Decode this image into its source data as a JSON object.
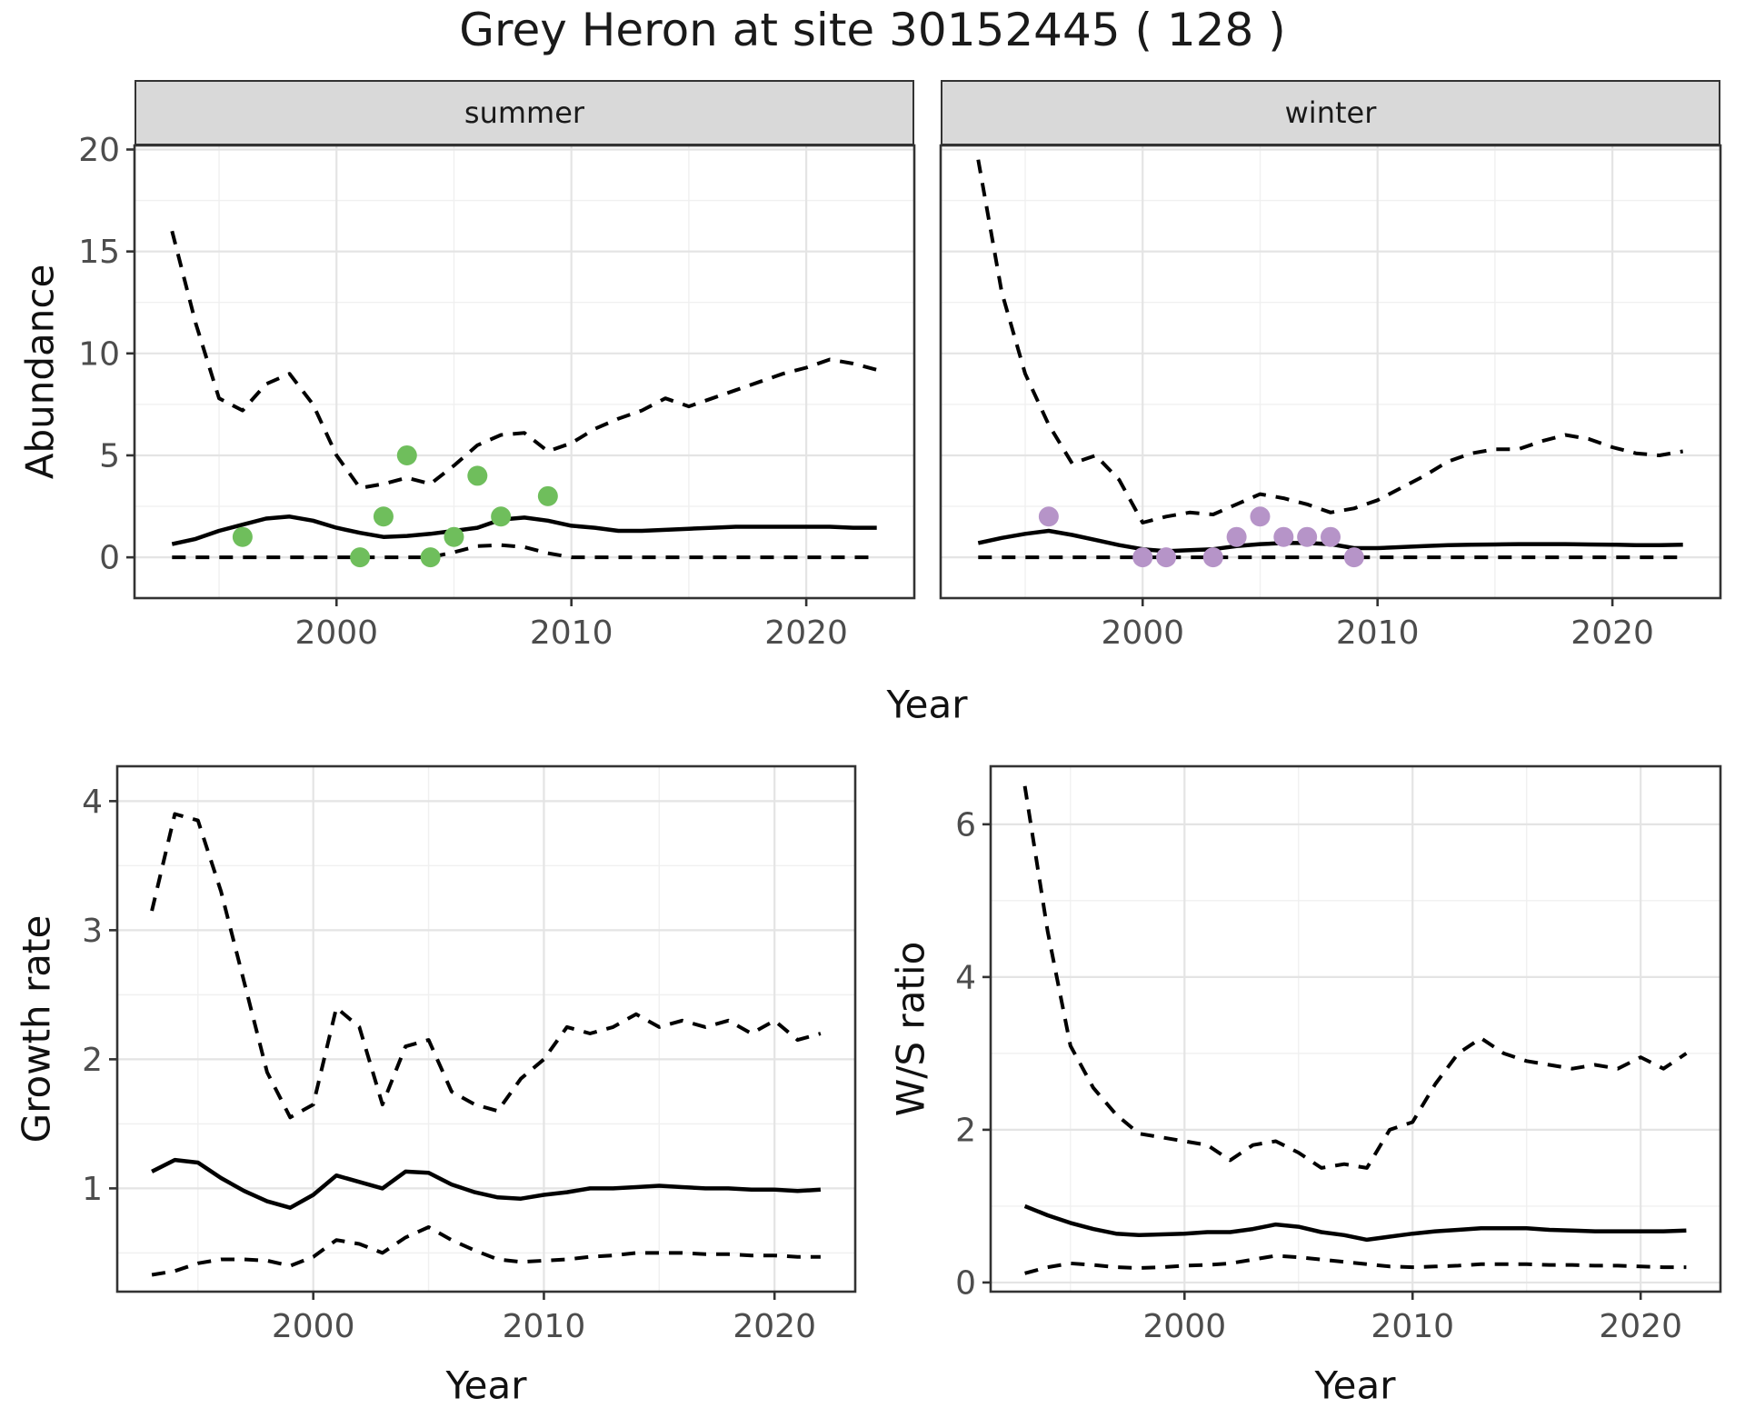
{
  "title": "Grey Heron at site 30152445 ( 128 )",
  "colors": {
    "summer_point": "#6fbe5c",
    "winter_point": "#b694c8",
    "line": "#000000",
    "strip_fill": "#d9d9d9",
    "strip_border": "#333333",
    "panel_border": "#333333",
    "grid_major": "#e4e4e4",
    "grid_minor": "#f0f0f0",
    "axis_text": "#4d4d4d",
    "title_text": "#1a1a1a"
  },
  "chart_data": [
    {
      "type": "line",
      "facet": "summer",
      "xlabel": "Year",
      "ylabel": "Abundance",
      "legend_position": "none",
      "grid": true,
      "xlim": [
        1991.4,
        2024.6
      ],
      "ylim": [
        -2.0,
        20.2
      ],
      "xticks": [
        2000,
        2010,
        2020
      ],
      "xticks_minor": [
        1995,
        2005,
        2015
      ],
      "yticks": [
        0,
        5,
        10,
        15,
        20
      ],
      "yticks_minor": [
        2.5,
        7.5,
        12.5,
        17.5
      ],
      "years": [
        1993,
        1994,
        1995,
        1996,
        1997,
        1998,
        1999,
        2000,
        2001,
        2002,
        2003,
        2004,
        2005,
        2006,
        2007,
        2008,
        2009,
        2010,
        2011,
        2012,
        2013,
        2014,
        2015,
        2016,
        2017,
        2018,
        2019,
        2020,
        2021,
        2022,
        2023
      ],
      "series": [
        {
          "name": "median",
          "style": "solid",
          "values": [
            0.65,
            0.9,
            1.3,
            1.6,
            1.9,
            2.0,
            1.8,
            1.45,
            1.2,
            1.0,
            1.05,
            1.15,
            1.3,
            1.45,
            1.85,
            1.95,
            1.8,
            1.55,
            1.45,
            1.3,
            1.3,
            1.35,
            1.4,
            1.45,
            1.5,
            1.5,
            1.5,
            1.5,
            1.5,
            1.45,
            1.45
          ]
        },
        {
          "name": "upper-ci",
          "style": "dashed",
          "values": [
            16,
            11.5,
            7.8,
            7.2,
            8.5,
            9.0,
            7.5,
            5.0,
            3.4,
            3.6,
            3.9,
            3.6,
            4.5,
            5.5,
            6.0,
            6.1,
            5.2,
            5.6,
            6.3,
            6.8,
            7.2,
            7.8,
            7.4,
            7.8,
            8.2,
            8.6,
            9.0,
            9.3,
            9.7,
            9.5,
            9.2
          ]
        },
        {
          "name": "lower-ci",
          "style": "dashed",
          "values": [
            0,
            0,
            0,
            0,
            0,
            0,
            0,
            0,
            0,
            0,
            0,
            0,
            0.25,
            0.55,
            0.6,
            0.5,
            0.2,
            0,
            0,
            0,
            0,
            0,
            0,
            0,
            0,
            0,
            0,
            0,
            0,
            0,
            0
          ]
        }
      ],
      "points": [
        [
          1996,
          1
        ],
        [
          2001,
          0
        ],
        [
          2002,
          2
        ],
        [
          2003,
          5
        ],
        [
          2004,
          0
        ],
        [
          2005,
          1
        ],
        [
          2006,
          4
        ],
        [
          2007,
          2
        ],
        [
          2009,
          3
        ]
      ],
      "point_color": "#6fbe5c"
    },
    {
      "type": "line",
      "facet": "winter",
      "xlabel": "Year",
      "ylabel": "Abundance",
      "legend_position": "none",
      "grid": true,
      "xlim": [
        1991.4,
        2024.6
      ],
      "ylim": [
        -2.0,
        20.2
      ],
      "xticks": [
        2000,
        2010,
        2020
      ],
      "xticks_minor": [
        1995,
        2005,
        2015
      ],
      "yticks": [
        0,
        5,
        10,
        15,
        20
      ],
      "yticks_minor": [
        2.5,
        7.5,
        12.5,
        17.5
      ],
      "years": [
        1993,
        1994,
        1995,
        1996,
        1997,
        1998,
        1999,
        2000,
        2001,
        2002,
        2003,
        2004,
        2005,
        2006,
        2007,
        2008,
        2009,
        2010,
        2011,
        2012,
        2013,
        2014,
        2015,
        2016,
        2017,
        2018,
        2019,
        2020,
        2021,
        2022,
        2023
      ],
      "series": [
        {
          "name": "median",
          "style": "solid",
          "values": [
            0.7,
            0.95,
            1.15,
            1.3,
            1.1,
            0.85,
            0.6,
            0.4,
            0.3,
            0.35,
            0.4,
            0.55,
            0.65,
            0.7,
            0.7,
            0.65,
            0.45,
            0.45,
            0.5,
            0.55,
            0.6,
            0.62,
            0.63,
            0.65,
            0.65,
            0.65,
            0.63,
            0.62,
            0.6,
            0.6,
            0.62
          ]
        },
        {
          "name": "upper-ci",
          "style": "dashed",
          "values": [
            19.5,
            13.0,
            9.0,
            6.5,
            4.6,
            5.0,
            3.8,
            1.7,
            2.0,
            2.2,
            2.1,
            2.6,
            3.1,
            2.9,
            2.6,
            2.2,
            2.4,
            2.8,
            3.4,
            4.0,
            4.7,
            5.1,
            5.3,
            5.3,
            5.7,
            6.0,
            5.8,
            5.4,
            5.1,
            5.0,
            5.2
          ]
        },
        {
          "name": "lower-ci",
          "style": "dashed",
          "values": [
            0,
            0,
            0,
            0,
            0,
            0,
            0,
            0,
            0,
            0,
            0,
            0,
            0,
            0,
            0,
            0,
            0,
            0,
            0,
            0,
            0,
            0,
            0,
            0,
            0,
            0,
            0,
            0,
            0,
            0,
            0
          ]
        }
      ],
      "points": [
        [
          1996,
          2
        ],
        [
          2000,
          0
        ],
        [
          2001,
          0
        ],
        [
          2003,
          0
        ],
        [
          2004,
          1
        ],
        [
          2005,
          2
        ],
        [
          2006,
          1
        ],
        [
          2007,
          1
        ],
        [
          2008,
          1
        ],
        [
          2009,
          0
        ]
      ],
      "point_color": "#b694c8"
    },
    {
      "type": "line",
      "facet": "",
      "xlabel": "Year",
      "ylabel": "Growth rate",
      "legend_position": "none",
      "grid": true,
      "xlim": [
        1991.5,
        2023.5
      ],
      "ylim": [
        0.2,
        4.27
      ],
      "xticks": [
        2000,
        2010,
        2020
      ],
      "xticks_minor": [
        1995,
        2005,
        2015
      ],
      "yticks": [
        1,
        2,
        3,
        4
      ],
      "yticks_minor": [
        0.5,
        1.5,
        2.5,
        3.5
      ],
      "years": [
        1993,
        1994,
        1995,
        1996,
        1997,
        1998,
        1999,
        2000,
        2001,
        2002,
        2003,
        2004,
        2005,
        2006,
        2007,
        2008,
        2009,
        2010,
        2011,
        2012,
        2013,
        2014,
        2015,
        2016,
        2017,
        2018,
        2019,
        2020,
        2021,
        2022
      ],
      "series": [
        {
          "name": "median",
          "style": "solid",
          "values": [
            1.13,
            1.22,
            1.2,
            1.08,
            0.98,
            0.9,
            0.85,
            0.95,
            1.1,
            1.05,
            1.0,
            1.13,
            1.12,
            1.03,
            0.97,
            0.93,
            0.92,
            0.95,
            0.97,
            1.0,
            1.0,
            1.01,
            1.02,
            1.01,
            1.0,
            1.0,
            0.99,
            0.99,
            0.98,
            0.99
          ]
        },
        {
          "name": "upper-ci",
          "style": "dashed",
          "values": [
            3.15,
            3.9,
            3.85,
            3.3,
            2.6,
            1.9,
            1.55,
            1.65,
            2.4,
            2.25,
            1.65,
            2.1,
            2.15,
            1.75,
            1.65,
            1.6,
            1.85,
            2.0,
            2.25,
            2.2,
            2.25,
            2.35,
            2.25,
            2.3,
            2.25,
            2.3,
            2.2,
            2.3,
            2.15,
            2.2
          ]
        },
        {
          "name": "lower-ci",
          "style": "dashed",
          "values": [
            0.33,
            0.36,
            0.42,
            0.45,
            0.45,
            0.44,
            0.4,
            0.47,
            0.6,
            0.57,
            0.5,
            0.62,
            0.7,
            0.6,
            0.52,
            0.45,
            0.43,
            0.44,
            0.45,
            0.47,
            0.48,
            0.5,
            0.5,
            0.5,
            0.49,
            0.49,
            0.48,
            0.48,
            0.47,
            0.47
          ]
        }
      ],
      "points": [],
      "point_color": "#000000"
    },
    {
      "type": "line",
      "facet": "",
      "xlabel": "Year",
      "ylabel": "W/S ratio",
      "legend_position": "none",
      "grid": true,
      "xlim": [
        1991.5,
        2023.5
      ],
      "ylim": [
        -0.12,
        6.76
      ],
      "xticks": [
        2000,
        2010,
        2020
      ],
      "xticks_minor": [
        1995,
        2005,
        2015
      ],
      "yticks": [
        0,
        2,
        4,
        6
      ],
      "yticks_minor": [
        1,
        3,
        5
      ],
      "years": [
        1993,
        1994,
        1995,
        1996,
        1997,
        1998,
        1999,
        2000,
        2001,
        2002,
        2003,
        2004,
        2005,
        2006,
        2007,
        2008,
        2009,
        2010,
        2011,
        2012,
        2013,
        2014,
        2015,
        2016,
        2017,
        2018,
        2019,
        2020,
        2021,
        2022
      ],
      "series": [
        {
          "name": "median",
          "style": "solid",
          "values": [
            1.0,
            0.88,
            0.78,
            0.7,
            0.64,
            0.62,
            0.63,
            0.64,
            0.66,
            0.66,
            0.7,
            0.76,
            0.73,
            0.66,
            0.62,
            0.56,
            0.6,
            0.64,
            0.67,
            0.69,
            0.71,
            0.71,
            0.71,
            0.69,
            0.68,
            0.67,
            0.67,
            0.67,
            0.67,
            0.68
          ]
        },
        {
          "name": "upper-ci",
          "style": "dashed",
          "values": [
            6.5,
            4.6,
            3.1,
            2.55,
            2.2,
            1.95,
            1.9,
            1.85,
            1.8,
            1.6,
            1.8,
            1.85,
            1.7,
            1.5,
            1.55,
            1.5,
            2.0,
            2.1,
            2.6,
            3.0,
            3.2,
            3.0,
            2.9,
            2.85,
            2.8,
            2.85,
            2.8,
            2.95,
            2.8,
            3.0
          ]
        },
        {
          "name": "lower-ci",
          "style": "dashed",
          "values": [
            0.12,
            0.2,
            0.25,
            0.23,
            0.2,
            0.19,
            0.2,
            0.22,
            0.23,
            0.25,
            0.3,
            0.35,
            0.33,
            0.3,
            0.27,
            0.24,
            0.21,
            0.2,
            0.21,
            0.22,
            0.24,
            0.24,
            0.24,
            0.23,
            0.23,
            0.22,
            0.22,
            0.21,
            0.2,
            0.2
          ]
        }
      ],
      "points": [],
      "point_color": "#000000"
    }
  ]
}
